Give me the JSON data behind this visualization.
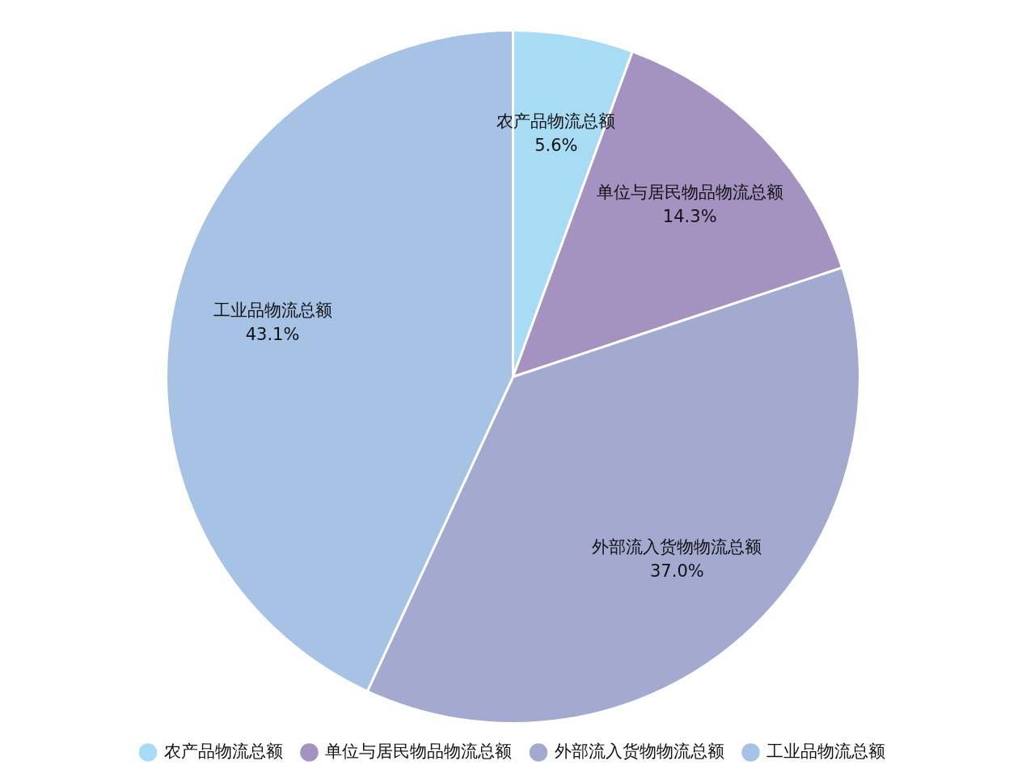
{
  "chart_data": {
    "type": "pie",
    "categories": [
      "农产品物流总额",
      "单位与居民物品物流总额",
      "外部流入货物物流总额",
      "工业品物流总额"
    ],
    "values": [
      5.6,
      14.3,
      37.0,
      43.1
    ],
    "colors": [
      "#a8dcf5",
      "#a492c0",
      "#a4a9d0",
      "#a6c2e5"
    ],
    "value_labels": [
      "5.6%",
      "14.3%",
      "37.0%",
      "43.1%"
    ],
    "legend": "bottom"
  }
}
